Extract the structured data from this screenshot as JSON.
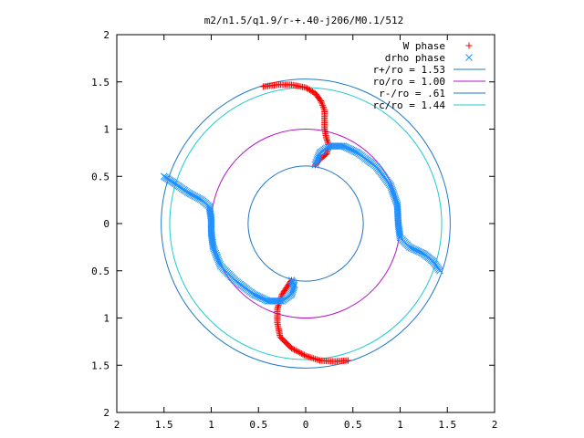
{
  "chart_data": {
    "type": "scatter",
    "title": "m2/n1.5/q1.9/r-+.40-j206/M0.1/512",
    "xlim": [
      -2,
      2
    ],
    "ylim": [
      -2,
      2
    ],
    "grid": false,
    "legend_position": "top-right",
    "x_ticks": [
      "2",
      "1.5",
      "1",
      "0.5",
      "0",
      "0.5",
      "1",
      "1.5",
      "2"
    ],
    "y_ticks": [
      "2",
      "1.5",
      "1",
      "0.5",
      "0",
      "0.5",
      "1",
      "1.5",
      "2"
    ],
    "legend": [
      {
        "label": "W phase",
        "marker": "+",
        "color": "#ff0000"
      },
      {
        "label": "drho phase",
        "marker": "x",
        "color": "#1f8fff"
      },
      {
        "label": "r+/ro = 1.53",
        "marker": "line",
        "color": "#1f78c8"
      },
      {
        "label": "ro/ro = 1.00",
        "marker": "line",
        "color": "#b414c8"
      },
      {
        "label": "r-/ro = .61",
        "marker": "line",
        "color": "#1f78c8"
      },
      {
        "label": "rc/ro = 1.44",
        "marker": "line",
        "color": "#1ecccc"
      }
    ],
    "circles": [
      {
        "name": "r+/ro",
        "radius": 1.53,
        "color": "#1f78c8"
      },
      {
        "name": "ro/ro",
        "radius": 1.0,
        "color": "#b414c8"
      },
      {
        "name": "r-/ro",
        "radius": 0.61,
        "color": "#1f78c8"
      },
      {
        "name": "rc/ro",
        "radius": 1.44,
        "color": "#1ecccc"
      }
    ],
    "series": [
      {
        "name": "W phase",
        "marker": "+",
        "color": "#ff0000",
        "arms": [
          {
            "points": [
              [
                -0.45,
                1.45
              ],
              [
                -0.3,
                1.47
              ],
              [
                -0.15,
                1.47
              ],
              [
                0.0,
                1.44
              ],
              [
                0.1,
                1.38
              ],
              [
                0.16,
                1.3
              ],
              [
                0.2,
                1.2
              ],
              [
                0.2,
                1.1
              ],
              [
                0.2,
                1.0
              ],
              [
                0.22,
                0.9
              ],
              [
                0.25,
                0.82
              ],
              [
                0.22,
                0.74
              ],
              [
                0.15,
                0.68
              ],
              [
                0.1,
                0.62
              ]
            ]
          },
          {
            "points": [
              [
                -0.15,
                -0.6
              ],
              [
                -0.25,
                -0.75
              ],
              [
                -0.3,
                -0.9
              ],
              [
                -0.3,
                -1.05
              ],
              [
                -0.27,
                -1.2
              ],
              [
                -0.15,
                -1.32
              ],
              [
                0.0,
                -1.4
              ],
              [
                0.15,
                -1.45
              ],
              [
                0.3,
                -1.46
              ],
              [
                0.45,
                -1.45
              ]
            ]
          }
        ]
      },
      {
        "name": "drho phase",
        "marker": "x",
        "color": "#1f8fff",
        "arms": [
          {
            "points": [
              [
                0.1,
                0.62
              ],
              [
                0.15,
                0.75
              ],
              [
                0.25,
                0.82
              ],
              [
                0.4,
                0.82
              ],
              [
                0.55,
                0.75
              ],
              [
                0.75,
                0.6
              ],
              [
                0.9,
                0.4
              ],
              [
                0.97,
                0.2
              ],
              [
                0.98,
                0.0
              ],
              [
                1.0,
                -0.15
              ],
              [
                1.1,
                -0.25
              ],
              [
                1.25,
                -0.32
              ],
              [
                1.35,
                -0.4
              ],
              [
                1.42,
                -0.5
              ]
            ]
          },
          {
            "points": [
              [
                -1.5,
                0.5
              ],
              [
                -1.38,
                0.42
              ],
              [
                -1.25,
                0.33
              ],
              [
                -1.1,
                0.25
              ],
              [
                -1.02,
                0.18
              ],
              [
                -1.0,
                0.05
              ],
              [
                -1.0,
                -0.1
              ],
              [
                -0.98,
                -0.25
              ],
              [
                -0.9,
                -0.45
              ],
              [
                -0.75,
                -0.6
              ],
              [
                -0.55,
                -0.75
              ],
              [
                -0.4,
                -0.82
              ],
              [
                -0.25,
                -0.82
              ],
              [
                -0.15,
                -0.75
              ],
              [
                -0.12,
                -0.65
              ],
              [
                -0.15,
                -0.6
              ]
            ]
          }
        ]
      }
    ]
  }
}
